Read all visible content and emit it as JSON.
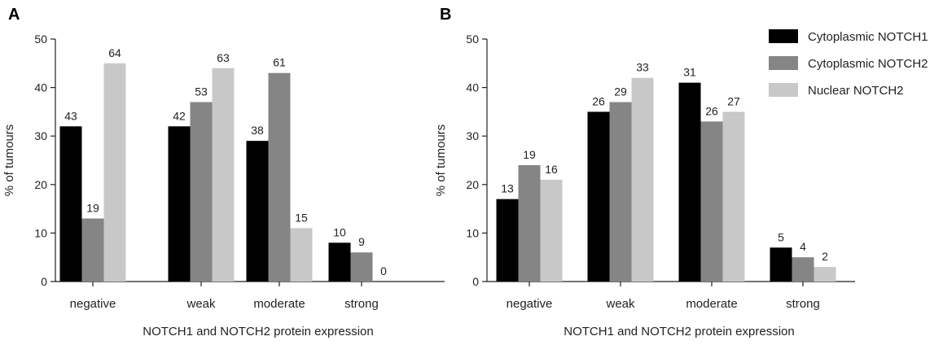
{
  "chart_data": [
    {
      "type": "bar",
      "panel": "A",
      "categories": [
        "negative",
        "weak",
        "moderate",
        "strong"
      ],
      "series": [
        {
          "name": "Cytoplasmic NOTCH1",
          "color": "#000000",
          "values": [
            32,
            32,
            29,
            8
          ],
          "labels": [
            "43",
            "42",
            "38",
            "10"
          ]
        },
        {
          "name": "Cytoplasmic NOTCH2",
          "color": "#858585",
          "values": [
            13,
            37,
            43,
            6
          ],
          "labels": [
            "19",
            "53",
            "61",
            "9"
          ]
        },
        {
          "name": "Nuclear NOTCH2",
          "color": "#c8c8c8",
          "values": [
            45,
            44,
            11,
            0
          ],
          "labels": [
            "64",
            "63",
            "15",
            "0"
          ]
        }
      ],
      "title": "",
      "xlabel": "NOTCH1 and NOTCH2 protein expression",
      "ylabel": "% of tumours",
      "ylim": [
        0,
        50
      ],
      "yticks": [
        "0",
        "10",
        "20",
        "30",
        "40",
        "50"
      ]
    },
    {
      "type": "bar",
      "panel": "B",
      "categories": [
        "negative",
        "weak",
        "moderate",
        "strong"
      ],
      "series": [
        {
          "name": "Cytoplasmic NOTCH1",
          "color": "#000000",
          "values": [
            17,
            35,
            41,
            7
          ],
          "labels": [
            "13",
            "26",
            "31",
            "5"
          ]
        },
        {
          "name": "Cytoplasmic NOTCH2",
          "color": "#858585",
          "values": [
            24,
            37,
            33,
            5
          ],
          "labels": [
            "19",
            "29",
            "26",
            "4"
          ]
        },
        {
          "name": "Nuclear NOTCH2",
          "color": "#c8c8c8",
          "values": [
            21,
            42,
            35,
            3
          ],
          "labels": [
            "16",
            "33",
            "27",
            "2"
          ]
        }
      ],
      "title": "",
      "xlabel": "NOTCH1 and NOTCH2 protein expression",
      "ylabel": "% of tumours",
      "ylim": [
        0,
        50
      ],
      "yticks": [
        "0",
        "10",
        "20",
        "30",
        "40",
        "50"
      ],
      "legend": "top-right"
    }
  ]
}
